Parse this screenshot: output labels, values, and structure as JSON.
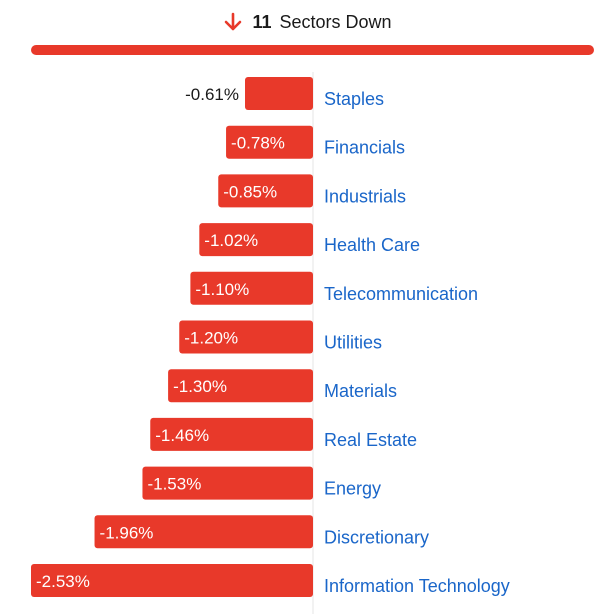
{
  "header": {
    "count": "11",
    "text": "Sectors Down",
    "icon": "arrow-down-icon"
  },
  "colors": {
    "bar": "#e8392a",
    "label": "#1a66c9",
    "axis": "#e4e4e4"
  },
  "chart_data": {
    "type": "bar",
    "orientation": "horizontal",
    "title": "",
    "xlabel": "",
    "ylabel": "",
    "xlim": [
      -2.53,
      0
    ],
    "grid": false,
    "categories": [
      "Staples",
      "Financials",
      "Industrials",
      "Health Care",
      "Telecommunication",
      "Utilities",
      "Materials",
      "Real Estate",
      "Energy",
      "Discretionary",
      "Information Technology"
    ],
    "values": [
      -0.61,
      -0.78,
      -0.85,
      -1.02,
      -1.1,
      -1.2,
      -1.3,
      -1.46,
      -1.53,
      -1.96,
      -2.53
    ],
    "value_labels": [
      "-0.61%",
      "-0.78%",
      "-0.85%",
      "-1.02%",
      "-1.10%",
      "-1.20%",
      "-1.30%",
      "-1.46%",
      "-1.53%",
      "-1.96%",
      "-2.53%"
    ]
  }
}
